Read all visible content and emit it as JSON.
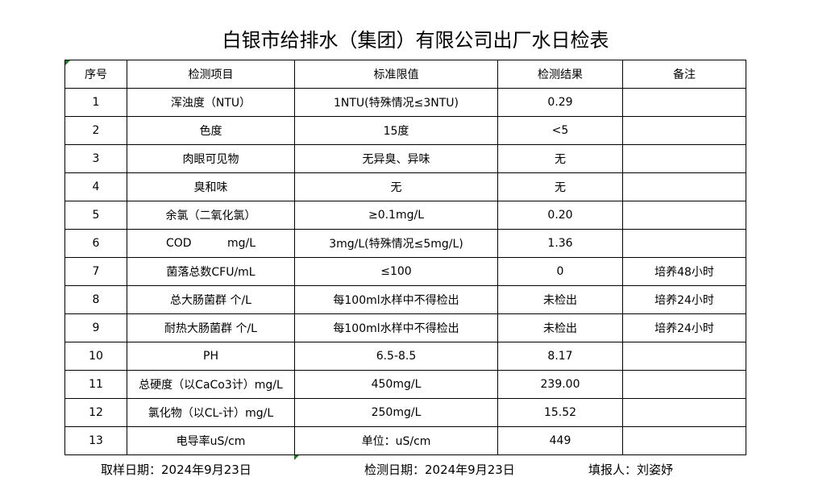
{
  "title": "白银市给排水（集团）有限公司出厂水日检表",
  "headers": [
    "序号",
    "检测项目",
    "标准限值",
    "检测结果",
    "备注"
  ],
  "rows": [
    [
      "1",
      "浑浊度（NTU）",
      "1NTU(特殊情况≤3NTU)",
      "0.29",
      ""
    ],
    [
      "2",
      "色度",
      "15度",
      "<5",
      ""
    ],
    [
      "3",
      "肉眼可见物",
      "无异臭、异味",
      "无",
      ""
    ],
    [
      "4",
      "臭和味",
      "无",
      "无",
      ""
    ],
    [
      "5",
      "余氯（二氧化氯）",
      "≥0.1mg/L",
      "0.20",
      ""
    ],
    [
      "6",
      "COD          mg/L",
      "3mg/L(特殊情况≤5mg/L)",
      "1.36",
      ""
    ],
    [
      "7",
      "菌落总数CFU/mL",
      "≤100",
      "0",
      "培养48小时"
    ],
    [
      "8",
      "总大肠菌群 个/L",
      "每100ml水样中不得检出",
      "未检出",
      "培养24小时"
    ],
    [
      "9",
      "耐热大肠菌群 个/L",
      "每100ml水样中不得检出",
      "未检出",
      "培养24小时"
    ],
    [
      "10",
      "PH",
      "6.5-8.5",
      "8.17",
      ""
    ],
    [
      "11",
      "总硬度（以CaCo3计）mg/L",
      "450mg/L",
      "239.00",
      ""
    ],
    [
      "12",
      "氯化物（以CL-计）mg/L",
      "250mg/L",
      "15.52",
      ""
    ],
    [
      "13",
      "电导率uS/cm",
      "单位：uS/cm",
      "449",
      ""
    ]
  ],
  "footer": {
    "sampling": "取样日期：2024年9月23日",
    "testing": "检测日期：2024年9月23日",
    "reporter": "填报人：刘姿妤"
  }
}
